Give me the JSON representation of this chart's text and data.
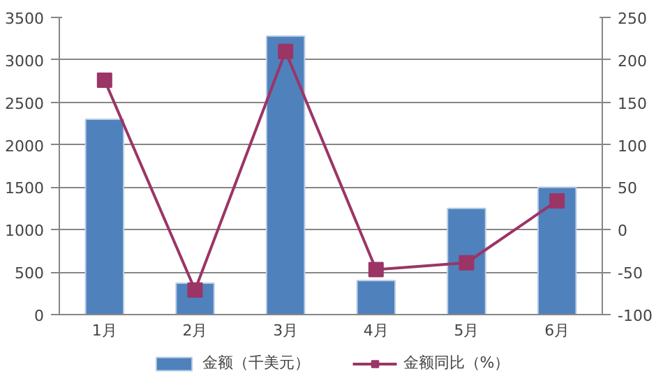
{
  "chart_data": {
    "type": "bar",
    "categories": [
      "1月",
      "2月",
      "3月",
      "4月",
      "5月",
      "6月"
    ],
    "series": [
      {
        "name": "金额（千美元）",
        "type": "bar",
        "color": "#4f81bd",
        "values": [
          2300,
          370,
          3280,
          400,
          1250,
          1500
        ]
      },
      {
        "name": "金额同比（%）",
        "type": "line",
        "axis": "y2",
        "color": "#9b3566",
        "marker": "square",
        "values": [
          176,
          -71,
          210,
          -47,
          -39,
          34
        ]
      }
    ],
    "ylim": [
      0,
      3500
    ],
    "yticks": [
      0,
      500,
      1000,
      1500,
      2000,
      2500,
      3000,
      3500
    ],
    "y2lim": [
      -100,
      250
    ],
    "y2ticks": [
      -100,
      -50,
      0,
      50,
      100,
      150,
      200,
      250
    ],
    "grid": "y",
    "legend": "bottom"
  }
}
